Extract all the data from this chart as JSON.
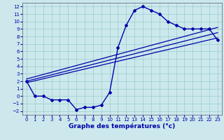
{
  "xlabel": "Graphe des températures (°c)",
  "bg_color": "#cce8ec",
  "line_color": "#0000aa",
  "grid_color": "#99cccc",
  "xlim": [
    -0.5,
    23.5
  ],
  "ylim": [
    -2.5,
    12.5
  ],
  "xticks": [
    0,
    1,
    2,
    3,
    4,
    5,
    6,
    7,
    8,
    9,
    10,
    11,
    12,
    13,
    14,
    15,
    16,
    17,
    18,
    19,
    20,
    21,
    22,
    23
  ],
  "yticks": [
    -2,
    -1,
    0,
    1,
    2,
    3,
    4,
    5,
    6,
    7,
    8,
    9,
    10,
    11,
    12
  ],
  "curve_x": [
    0,
    1,
    2,
    3,
    4,
    5,
    6,
    7,
    8,
    9,
    10,
    11,
    12,
    13,
    14,
    15,
    16,
    17,
    18,
    19,
    20,
    21,
    22,
    23
  ],
  "curve_y": [
    2,
    0,
    0,
    -0.5,
    -0.5,
    -0.5,
    -1.8,
    -1.5,
    -1.5,
    -1.2,
    0.5,
    6.5,
    9.5,
    11.5,
    12,
    11.5,
    11,
    10,
    9.5,
    9,
    9,
    9,
    9,
    7.5
  ],
  "line1_x": [
    0,
    23
  ],
  "line1_y": [
    1.8,
    7.8
  ],
  "line2_x": [
    0,
    23
  ],
  "line2_y": [
    2.0,
    8.5
  ],
  "line3_x": [
    0,
    23
  ],
  "line3_y": [
    2.3,
    9.2
  ],
  "xlabel_fontsize": 6.5,
  "tick_fontsize": 5
}
